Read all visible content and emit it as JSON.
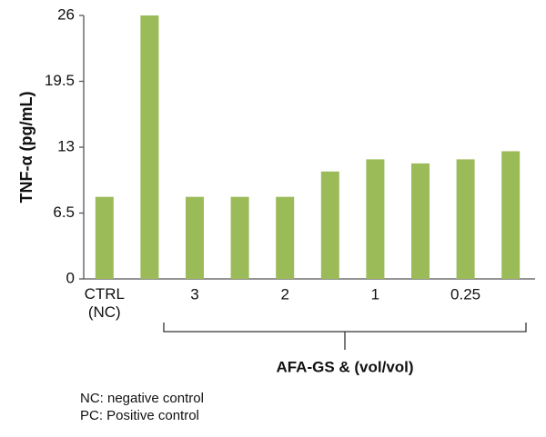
{
  "chart_data": {
    "type": "bar",
    "ylabel": "TNF-α (pg/mL)",
    "categories": [
      "CTRL (NC)",
      null,
      "3",
      null,
      "2",
      null,
      "1",
      null,
      "0.25",
      null
    ],
    "values": [
      8.1,
      26,
      8.1,
      8.1,
      8.1,
      10.6,
      11.8,
      11.4,
      11.8,
      12.6
    ],
    "color": "#9bbb59",
    "ylim": [
      0,
      26
    ],
    "yticks": [
      0,
      6.5,
      13,
      19.5,
      26
    ],
    "group_label": "AFA-GS & (vol/vol)",
    "notes": [
      "NC: negative control",
      "PC: Positive control"
    ]
  }
}
